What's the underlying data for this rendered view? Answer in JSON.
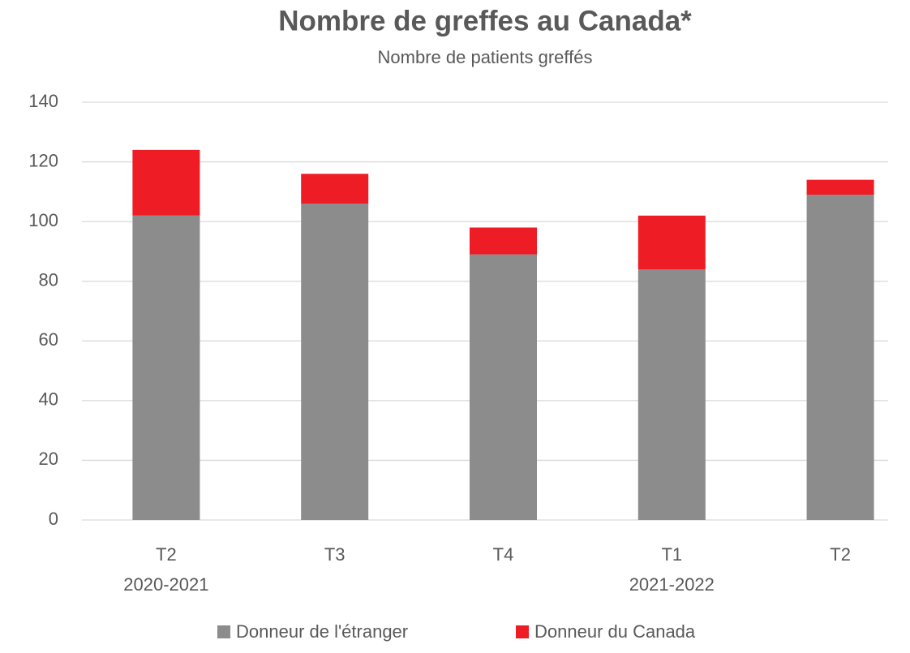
{
  "chart_data": {
    "type": "stacked_bar",
    "title": "Nombre de greffes au Canada*",
    "subtitle": "Nombre de patients greffés",
    "categories": [
      "T2",
      "T3",
      "T4",
      "T1",
      "T2"
    ],
    "periods": [
      "2020-2021",
      null,
      null,
      "2021-2022",
      null
    ],
    "series": [
      {
        "name": "Donneur de l'étranger",
        "color": "#8c8c8c",
        "values": [
          102,
          106,
          89,
          84,
          109
        ]
      },
      {
        "name": "Donneur du Canada",
        "color": "#ee1c25",
        "values": [
          22,
          10,
          9,
          18,
          5
        ]
      }
    ],
    "ylim": [
      0,
      140
    ],
    "yticks": [
      0,
      20,
      40,
      60,
      80,
      100,
      120,
      140
    ],
    "grid": true,
    "legend": "bottom"
  }
}
